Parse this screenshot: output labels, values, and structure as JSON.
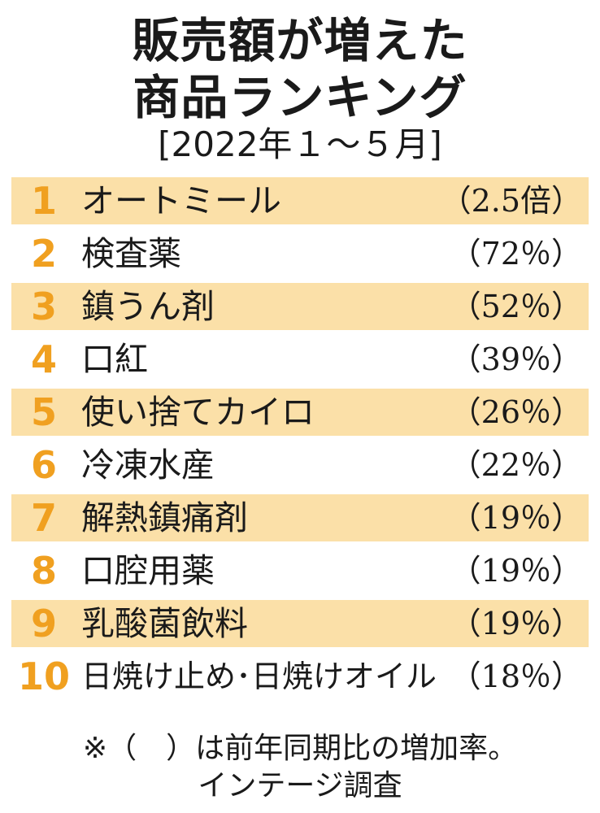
{
  "colors": {
    "row_shade": "#fbe0a8",
    "rank": "#f0a020",
    "text": "#1a1a1a"
  },
  "chart_data": {
    "type": "table",
    "title_line1": "販売額が増えた",
    "title_line2": "商品ランキング",
    "subtitle": "[2022年１～５月]",
    "rows": [
      {
        "rank": "1",
        "name": "オートミール",
        "value": "（2.5倍）",
        "shaded": true
      },
      {
        "rank": "2",
        "name": "検査薬",
        "value": "（72％）",
        "shaded": false
      },
      {
        "rank": "3",
        "name": "鎮うん剤",
        "value": "（52％）",
        "shaded": true
      },
      {
        "rank": "4",
        "name": "口紅",
        "value": "（39％）",
        "shaded": false
      },
      {
        "rank": "5",
        "name": "使い捨てカイロ",
        "value": "（26％）",
        "shaded": true
      },
      {
        "rank": "6",
        "name": "冷凍水産",
        "value": "（22％）",
        "shaded": false
      },
      {
        "rank": "7",
        "name": "解熱鎮痛剤",
        "value": "（19％）",
        "shaded": true
      },
      {
        "rank": "8",
        "name": "口腔用薬",
        "value": "（19％）",
        "shaded": false
      },
      {
        "rank": "9",
        "name": "乳酸菌飲料",
        "value": "（19％）",
        "shaded": true
      },
      {
        "rank": "10",
        "name": "日焼け止め･日焼けオイル",
        "value": "（18％）",
        "shaded": false
      }
    ],
    "note_line1": "※（　）は前年同期比の増加率。",
    "note_line2": "インテージ調査"
  }
}
